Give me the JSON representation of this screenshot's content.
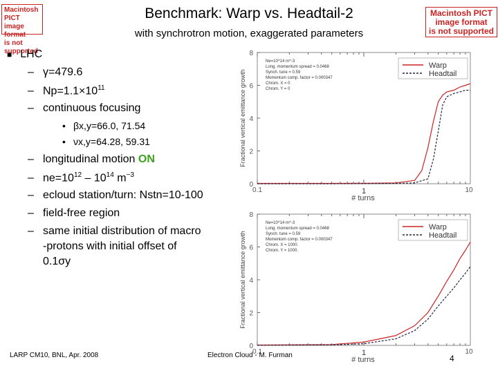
{
  "header": {
    "title": "Benchmark: Warp vs. Headtail-2",
    "subtitle": "with synchrotron motion, exaggerated parameters"
  },
  "placeholders": {
    "left": [
      "Macintosh PICT",
      "image format",
      "is not supported"
    ],
    "right": [
      "Macintosh PICT",
      "image format",
      "is not supported"
    ]
  },
  "bullets": {
    "top": "LHC",
    "gamma": "γ=479.6",
    "np": "Np=1.1×10",
    "np_exp": "11",
    "focusing": "continuous focusing",
    "beta": "βx,y=66.0, 71.54",
    "nu": "νx,y=64.28, 59.31",
    "longitudinal_pre": "longitudinal motion ",
    "longitudinal_on": "ON",
    "ne": "ne=10",
    "ne_exp1": "12",
    "ne_mid": " – 10",
    "ne_exp2": "14",
    "ne_unit": " m",
    "ne_exp3": "−3",
    "ecloud": "ecloud station/turn: Nstn=10-100",
    "fieldfree": "field-free region",
    "initial1": "same initial distribution of macro",
    "initial2": "-protons with initial offset of",
    "initial3": "0.1σy"
  },
  "footer": {
    "left": "LARP CM10, BNL, Apr. 2008",
    "center": "Electron Cloud - M. Furman",
    "page": "4"
  },
  "chart_data": [
    {
      "type": "line",
      "ylabel": "Fractional vertical emittance growth",
      "xlabel": "# turns",
      "ylim": [
        0,
        8
      ],
      "yticks": [
        "0",
        "2",
        "4",
        "6",
        "8"
      ],
      "xtick_left": "0.1",
      "xtick_mid": "1",
      "xtick_right": "10",
      "info": [
        "Ne=10^14 m^-3",
        "Long. momentum spread = 0.0468",
        "Synch. tune = 0.59",
        "Momentum comp. factor = 0.000347",
        "Chrom. X = 0",
        "Chrom. Y = 0"
      ],
      "series": [
        {
          "name": "Warp",
          "color": "#cc2222",
          "x": [
            0.1,
            0.5,
            1,
            2,
            3,
            3.5,
            4,
            4.5,
            5,
            5.5,
            6,
            7,
            8,
            9,
            10
          ],
          "values": [
            0.02,
            0.02,
            0.03,
            0.05,
            0.2,
            0.8,
            2.2,
            3.8,
            5.0,
            5.4,
            5.6,
            5.7,
            5.9,
            6.0,
            6.1
          ]
        },
        {
          "name": "Headtail",
          "color": "#222244",
          "x": [
            0.1,
            0.5,
            1,
            2,
            3,
            4,
            4.5,
            5,
            5.5,
            6,
            7,
            8,
            9,
            10
          ],
          "values": [
            0.0,
            0.0,
            0.01,
            0.02,
            0.05,
            0.3,
            1.5,
            3.2,
            4.8,
            5.3,
            5.5,
            5.6,
            5.7,
            5.7
          ]
        }
      ]
    },
    {
      "type": "line",
      "ylabel": "Fractional vertical emittance growth",
      "xlabel": "# turns",
      "ylim": [
        0,
        8
      ],
      "yticks": [
        "0",
        "2",
        "4",
        "6",
        "8"
      ],
      "xtick_left": "0.1",
      "xtick_mid": "1",
      "xtick_right": "10",
      "info": [
        "Ne=10^14 m^-3",
        "Long. momentum spread = 0.0468",
        "Synch. tune = 0.59",
        "Momentum comp. factor = 0.000347",
        "Chrom. X = 1000.",
        "Chrom. Y = 1000."
      ],
      "series": [
        {
          "name": "Warp",
          "color": "#cc2222",
          "x": [
            0.1,
            0.5,
            1,
            2,
            3,
            4,
            5,
            6,
            7,
            8,
            9,
            10
          ],
          "values": [
            0.02,
            0.05,
            0.2,
            0.6,
            1.2,
            2.0,
            3.0,
            3.9,
            4.6,
            5.3,
            5.8,
            6.3
          ]
        },
        {
          "name": "Headtail",
          "color": "#222244",
          "x": [
            0.1,
            0.5,
            1,
            2,
            3,
            4,
            5,
            6,
            7,
            8,
            9,
            10
          ],
          "values": [
            0.01,
            0.03,
            0.1,
            0.4,
            0.9,
            1.6,
            2.4,
            3.0,
            3.5,
            4.0,
            4.4,
            4.8
          ]
        }
      ]
    }
  ]
}
